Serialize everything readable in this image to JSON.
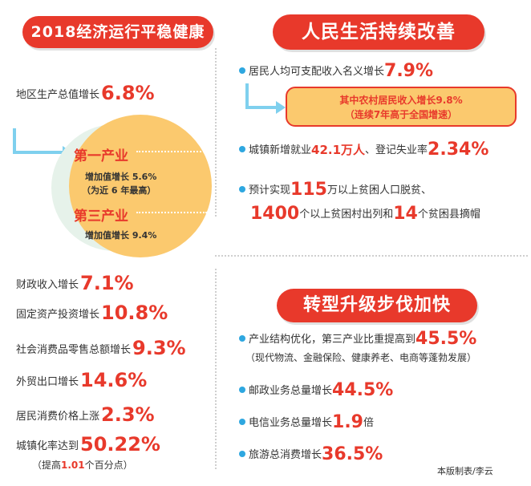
{
  "left": {
    "title": "2018经济运行平稳健康",
    "gdp": {
      "label": "地区生产总值增长",
      "value": "6.8%"
    },
    "industry1": {
      "title": "第一产业",
      "line1": "增加值增长 5.6%",
      "line2": "（为近 6 年最高）"
    },
    "industry3": {
      "title": "第三产业",
      "line1": "增加值增长 9.4%"
    },
    "stats": [
      {
        "label": "财政收入增长",
        "value": "7.1%"
      },
      {
        "label": "固定资产投资增长",
        "value": "10.8%"
      },
      {
        "label": "社会消费品零售总额增长",
        "value": "9.3%"
      },
      {
        "label": "外贸出口增长",
        "value": "14.6%"
      },
      {
        "label": "居民消费价格上涨",
        "value": "2.3%"
      },
      {
        "label": "城镇化率达到",
        "value": "50.22%"
      }
    ],
    "urban_note": {
      "prefix": "（提高",
      "value": "1.01",
      "suffix": "个百分点）"
    }
  },
  "right_top": {
    "title": "人民生活持续改善",
    "income": {
      "label": "居民人均可支配收入名义增长",
      "value": "7.9%"
    },
    "rural": {
      "line1": "其中农村居民收入增长9.8%",
      "line2": "（连续7年高于全国增速）"
    },
    "employment": {
      "label1": "城镇新增就业",
      "v1": "42.1万人",
      "label2": "、登记失业率",
      "v2": "2.34%"
    },
    "poverty": {
      "p1": "预计实现",
      "v1": "115",
      "p2": "万以上贫困人口脱贫、",
      "v2": "1400",
      "p3": "个以上贫困村出列和",
      "v3": "14",
      "p4": "个贫困县摘帽"
    }
  },
  "right_bottom": {
    "title": "转型升级步伐加快",
    "structure": {
      "label": "产业结构优化，第三产业比重提高到",
      "value": "45.5%",
      "note": "（现代物流、金融保险、健康养老、电商等蓬勃发展）"
    },
    "postal": {
      "label": "邮政业务总量增长",
      "value": "44.5%"
    },
    "telecom": {
      "label": "电信业务总量增长",
      "value": "1.9",
      "suffix": "倍"
    },
    "tourism": {
      "label": "旅游总消费增长",
      "value": "36.5%"
    }
  },
  "credit": "本版制表/李云",
  "colors": {
    "accent_red": "#e8392b",
    "orange": "#fbc96e",
    "blue": "#2ea7e0",
    "mint": "#e6f2ea"
  }
}
